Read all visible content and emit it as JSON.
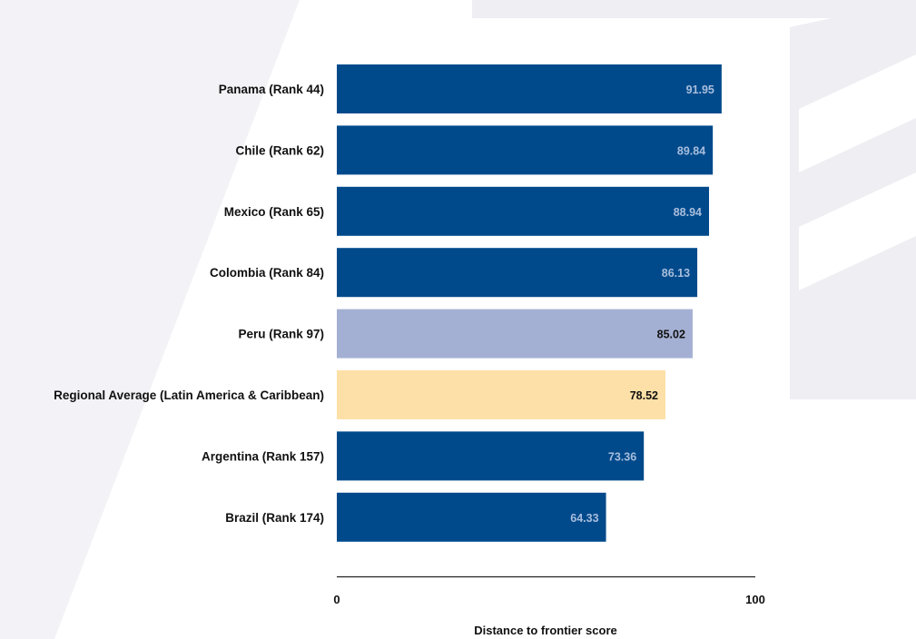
{
  "chart_data": {
    "type": "bar",
    "orientation": "horizontal",
    "categories": [
      "Panama (Rank 44)",
      "Chile (Rank 62)",
      "Mexico (Rank 65)",
      "Colombia (Rank 84)",
      "Peru (Rank 97)",
      "Regional Average (Latin America & Caribbean)",
      "Argentina (Rank 157)",
      "Brazil (Rank 174)"
    ],
    "values": [
      91.95,
      89.84,
      88.94,
      86.13,
      85.02,
      78.52,
      73.36,
      64.33
    ],
    "value_labels": [
      "91.95",
      "89.84",
      "88.94",
      "86.13",
      "85.02",
      "78.52",
      "73.36",
      "64.33"
    ],
    "bar_colors": [
      "#004a8c",
      "#004a8c",
      "#004a8c",
      "#004a8c",
      "#a4b0d3",
      "#fde0a7",
      "#004a8c",
      "#004a8c"
    ],
    "label_colors": [
      "#a9bedc",
      "#a9bedc",
      "#a9bedc",
      "#a9bedc",
      "#111111",
      "#111111",
      "#a9bedc",
      "#a9bedc"
    ],
    "xlabel": "Distance to frontier score",
    "xlim": [
      0,
      100
    ],
    "xticks": [
      "0",
      "100"
    ],
    "grid": false,
    "legend": "none"
  }
}
